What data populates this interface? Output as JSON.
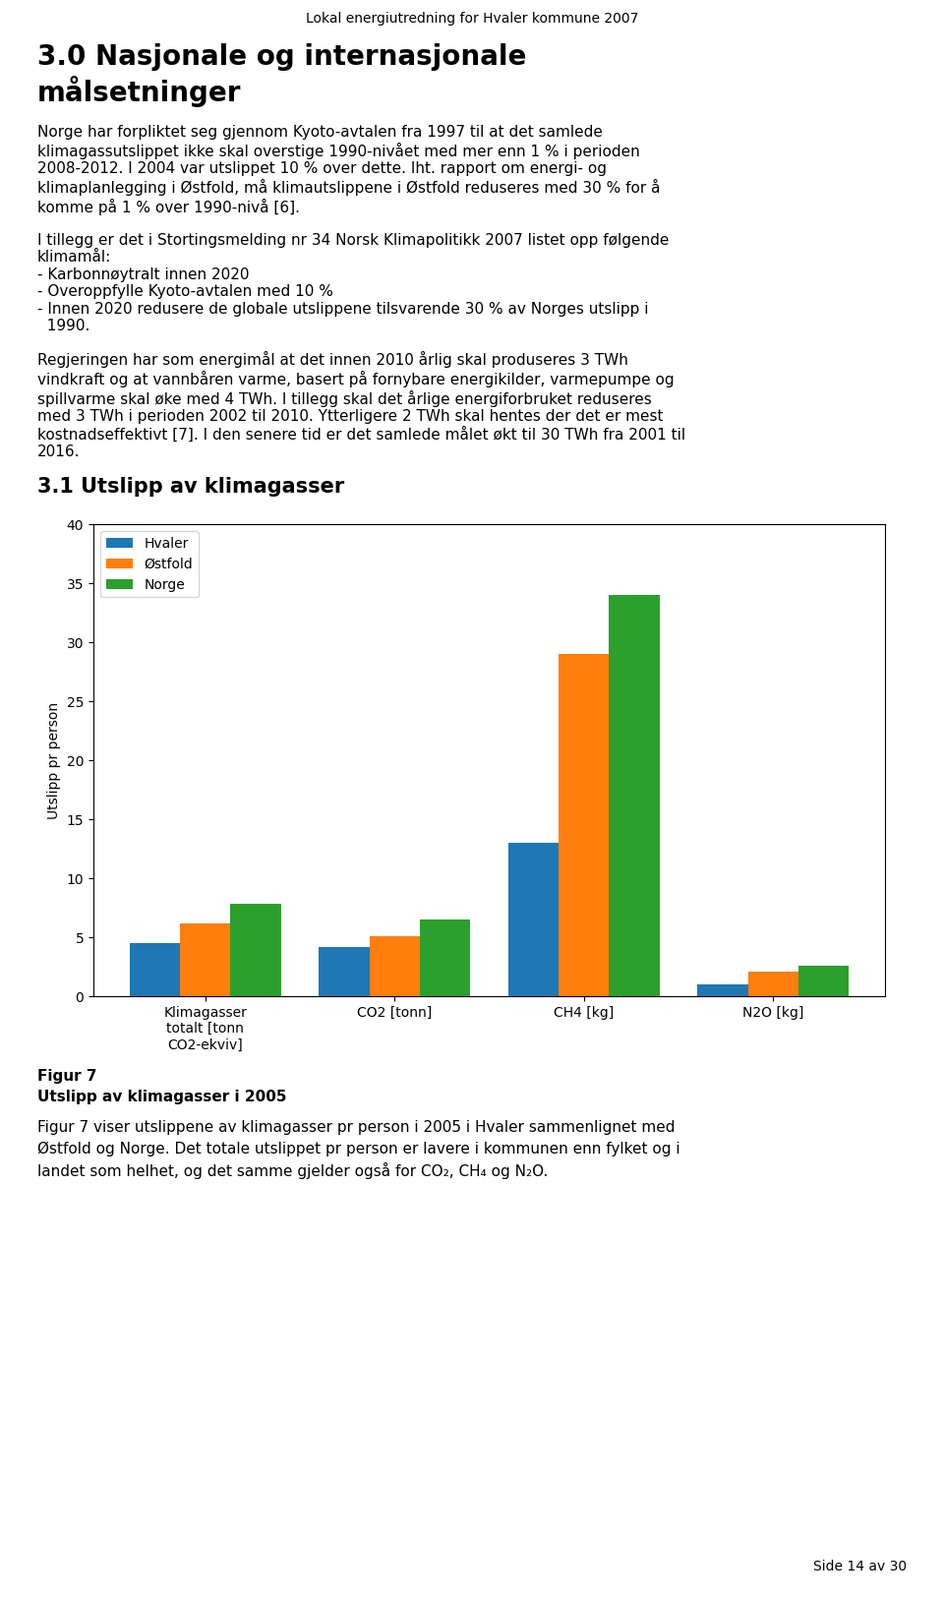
{
  "chart_data": {
    "type": "bar",
    "annotations": [
      "Lokal energiutredning for Hvaler kommune 2007",
      "3.0 Nasjonale og internasjonale\nmålsetninger",
      "Norge har forpliktet seg gjennom Kyoto-avtalen fra 1997 til at det samlede\nklimagassutslippet ikke skal overstige 1990-nivået med mer enn 1 % i perioden\n2008-2012. I 2004 var utslippet 10 % over dette. Iht. rapport om energi- og\nklimaplanlegging i Østfold, må klimautslippene i Østfold reduseres med 30 % for å\nkomme på 1 % over 1990-nivå [6].",
      "I tillegg er det i Stortingsmelding nr 34 Norsk Klimapolitikk 2007 listet opp følgende\nklimamål:\n- Karbonnøytralt innen 2020\n- Overoppfylle Kyoto-avtalen med 10 %\n- Innen 2020 redusere de globale utslippene tilsvarende 30 % av Norges utslipp i\n  1990.",
      "Regjeringen har som energimål at det innen 2010 årlig skal produseres 3 TWh\nvindkraft og at vannbåren varme, basert på fornybare energikilder, varmepumpe og\nspillvarme skal øke med 4 TWh. I tillegg skal det årlige energiforbruket reduseres\nmed 3 TWh i perioden 2002 til 2010. Ytterligere 2 TWh skal hentes der det er mest\nkostnadseffektivt [7]. I den senere tid er det samlede målet økt til 30 TWh fra 2001 til\n2016.",
      "3.1 Utslipp av klimagasser",
      "Figur 7",
      "Utslipp av klimagasser i 2005",
      "Figur 7 viser utslippene av klimagasser pr person i 2005 i Hvaler sammenlignet med",
      "Østfold og Norge. Det totale utslippet pr person er lavere i kommunen enn fylket og i",
      "landet som helhet, og det samme gjelder også for CO₂, CH₄ og N₂O.",
      "Side 14 av 30"
    ],
    "categories": [
      "Klimagasser\ntotalt [tonn\nCO2-ekviv]",
      "CO2 [tonn]",
      "CH4 [kg]",
      "N2O [kg]"
    ],
    "series": [
      {
        "name": "Hvaler",
        "values": [
          4.5,
          4.2,
          13.0,
          1.0
        ]
      },
      {
        "name": "Østfold",
        "values": [
          6.2,
          5.1,
          29.0,
          2.1
        ]
      },
      {
        "name": "Norge",
        "values": [
          7.9,
          6.5,
          34.0,
          2.6
        ]
      }
    ],
    "ylabel": "Utslipp pr person",
    "ylim": [
      0,
      40
    ],
    "yticks": [
      0,
      5,
      10,
      15,
      20,
      25,
      30,
      35,
      40
    ],
    "grid": false,
    "legend": "upper left"
  }
}
